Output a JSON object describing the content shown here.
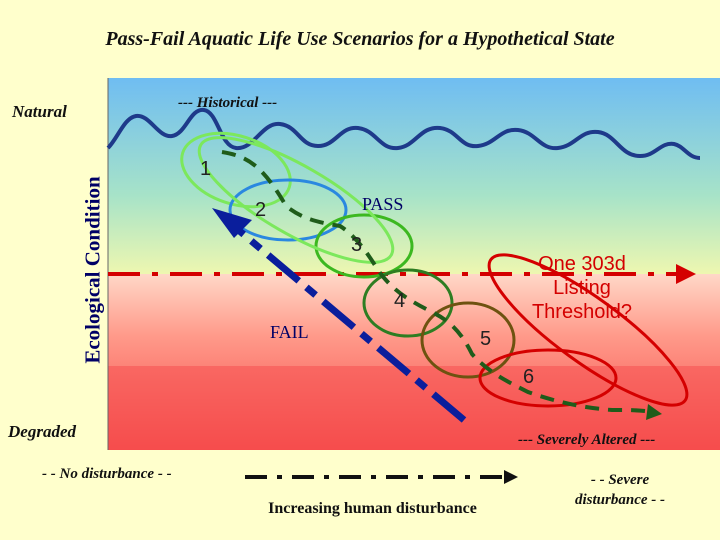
{
  "title": "Pass-Fail Aquatic Life Use Scenarios  for a Hypothetical State",
  "y_axis": {
    "label": "Ecological Condition",
    "top_label": "Natural",
    "bottom_label": "Degraded"
  },
  "reference_labels": {
    "historical": "--- Historical ---",
    "severely_altered": "--- Severely Altered ---"
  },
  "zones": {
    "pass": "PASS",
    "fail": "FAIL"
  },
  "scenarios": [
    "1",
    "2",
    "3",
    "4",
    "5",
    "6"
  ],
  "threshold_label": [
    "One 303d",
    "Listing",
    "Threshold?"
  ],
  "x_axis": {
    "left_label": "- - No disturbance - -",
    "label": "Increasing human disturbance",
    "right_label": [
      "- -  Severe",
      "disturbance - -"
    ]
  },
  "colors": {
    "pass_zone": "#7EC8F5",
    "fail_zone": "#F86060",
    "threshold_line": "#D40000",
    "historical_line": "#1E3A8A",
    "arrow": "#0A1E9C",
    "background": "#FFFFCC"
  }
}
